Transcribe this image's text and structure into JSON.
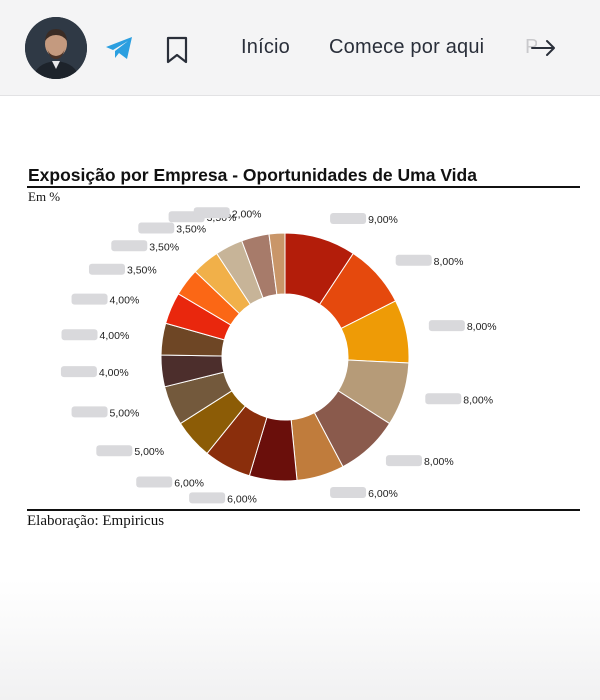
{
  "header": {
    "nav": [
      {
        "label": "Início"
      },
      {
        "label": "Comece por aqui"
      },
      {
        "label": "P"
      }
    ],
    "icons": [
      "avatar",
      "telegram-icon",
      "bookmark-icon",
      "arrow-right-icon"
    ]
  },
  "chart_data": {
    "type": "pie",
    "title": "Exposição por Empresa - Oportunidades de Uma Vida",
    "unit": "Em %",
    "source": "Elaboração: Empiricus",
    "hole": true,
    "labels": [
      "9,00%",
      "8,00%",
      "8,00%",
      "8,00%",
      "8,00%",
      "6,00%",
      "6,00%",
      "6,00%",
      "5,00%",
      "5,00%",
      "4,00%",
      "4,00%",
      "4,00%",
      "3,50%",
      "3,50%",
      "3,50%",
      "3,50%",
      "2,00%"
    ],
    "values": [
      9,
      8,
      8,
      8,
      8,
      6,
      6,
      6,
      5,
      5,
      4,
      4,
      4,
      3.5,
      3.5,
      3.5,
      3.5,
      2
    ],
    "colors": [
      "#b31d0a",
      "#e5490d",
      "#ee9b06",
      "#b69b78",
      "#8a5a4c",
      "#c07c3c",
      "#6a0f0b",
      "#8a2e0c",
      "#8c5c06",
      "#73593c",
      "#4c2e2c",
      "#6e4625",
      "#e9270d",
      "#fb6715",
      "#f1b049",
      "#c7b498",
      "#a77b6a",
      "#c99669"
    ]
  }
}
